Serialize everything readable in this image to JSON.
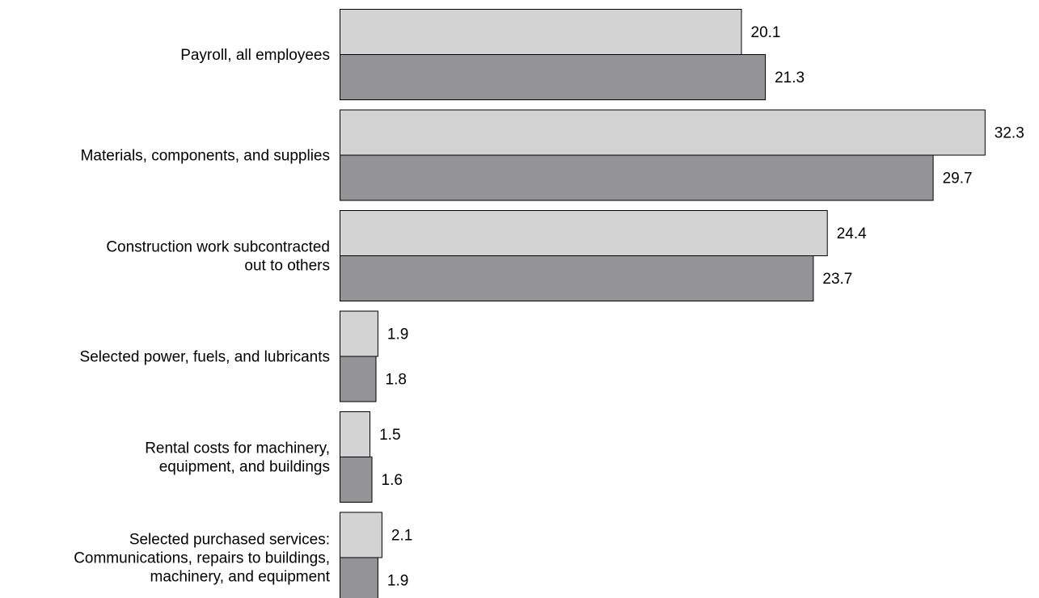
{
  "chart_data": {
    "type": "bar",
    "orientation": "horizontal",
    "categories": [
      [
        "Payroll, all employees"
      ],
      [
        "Materials, components, and supplies"
      ],
      [
        "Construction work subcontracted",
        "out to others"
      ],
      [
        "Selected power, fuels, and lubricants"
      ],
      [
        "Rental costs for machinery,",
        "equipment, and buildings"
      ],
      [
        "Selected purchased services:",
        "Communications, repairs to buildings,",
        "machinery, and equipment"
      ]
    ],
    "series": [
      {
        "values": [
          20.1,
          32.3,
          24.4,
          1.9,
          1.5,
          2.1
        ],
        "color": "#d3d3d4"
      },
      {
        "values": [
          21.3,
          29.7,
          23.7,
          1.8,
          1.6,
          1.9
        ],
        "color": "#949497"
      }
    ],
    "title": "",
    "xlabel": "",
    "ylabel": "",
    "xlim": [
      0,
      32.3
    ],
    "grid": false,
    "legend": "none"
  }
}
